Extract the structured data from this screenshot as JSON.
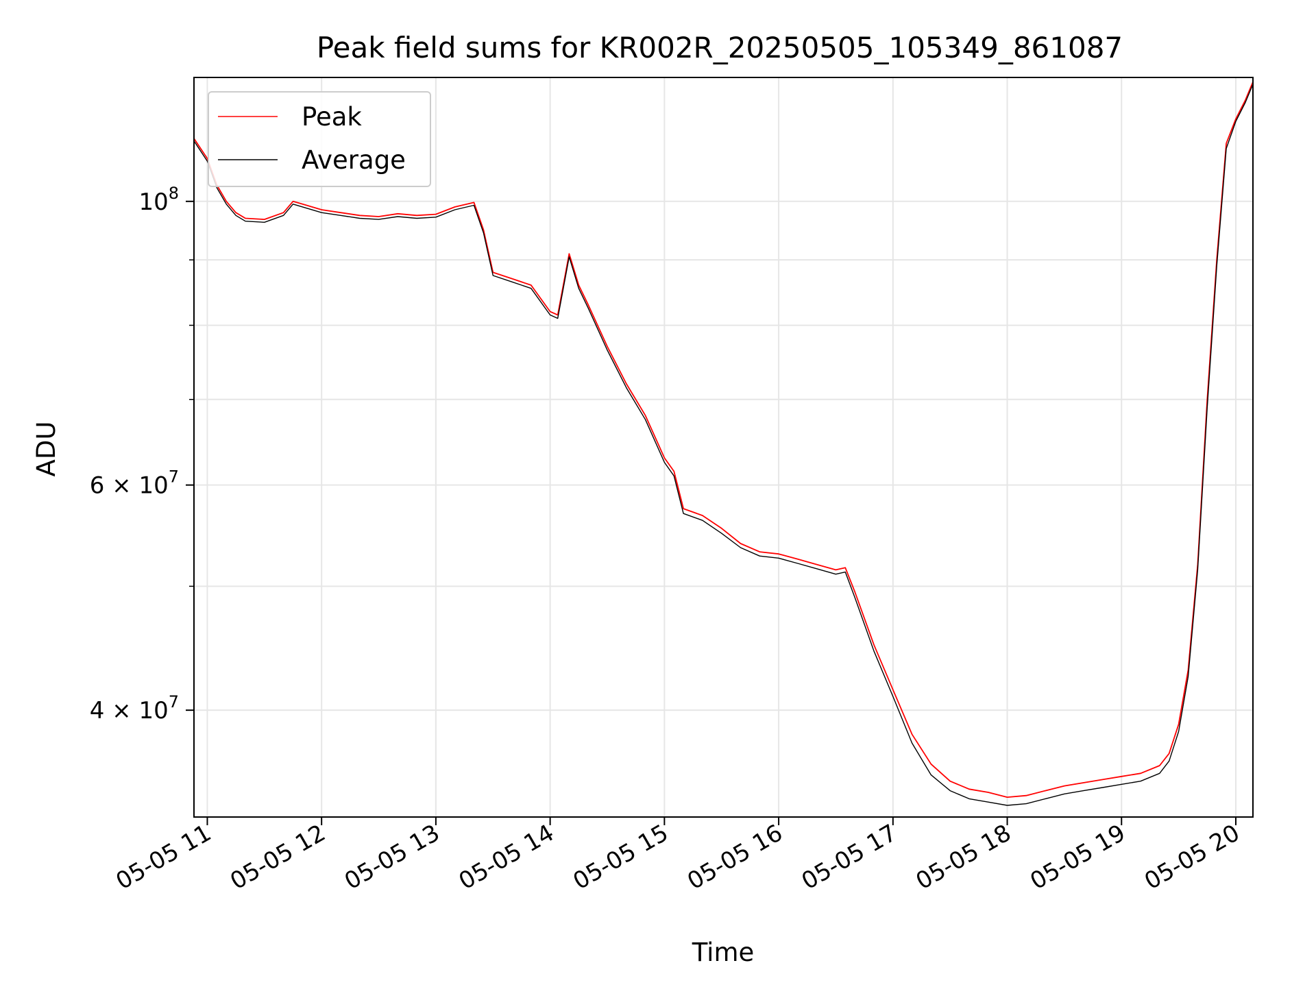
{
  "chart_data": {
    "type": "line",
    "title": "Peak field sums for KR002R_20250505_105349_861087",
    "xlabel": "Time",
    "ylabel": "ADU",
    "x_scale": "time",
    "y_scale": "log",
    "xlim": [
      "2025-05-05 10:53",
      "2025-05-05 20:09"
    ],
    "ylim": [
      33000000,
      125000000
    ],
    "grid": true,
    "legend_position": "top-left",
    "x_ticks": [
      {
        "value": "2025-05-05 11:00",
        "label": "05-05 11"
      },
      {
        "value": "2025-05-05 12:00",
        "label": "05-05 12"
      },
      {
        "value": "2025-05-05 13:00",
        "label": "05-05 13"
      },
      {
        "value": "2025-05-05 14:00",
        "label": "05-05 14"
      },
      {
        "value": "2025-05-05 15:00",
        "label": "05-05 15"
      },
      {
        "value": "2025-05-05 16:00",
        "label": "05-05 16"
      },
      {
        "value": "2025-05-05 17:00",
        "label": "05-05 17"
      },
      {
        "value": "2025-05-05 18:00",
        "label": "05-05 18"
      },
      {
        "value": "2025-05-05 19:00",
        "label": "05-05 19"
      },
      {
        "value": "2025-05-05 20:00",
        "label": "05-05 20"
      }
    ],
    "y_ticks": [
      {
        "value": 40000000,
        "mantissa": "4",
        "base": "10",
        "exp": "7"
      },
      {
        "value": 60000000,
        "mantissa": "6",
        "base": "10",
        "exp": "7"
      },
      {
        "value": 100000000,
        "mantissa": "",
        "base": "10",
        "exp": "8"
      }
    ],
    "y_minor_ticks": [
      50000000,
      70000000,
      80000000,
      90000000
    ],
    "x": [
      "2025-05-05 10:53",
      "2025-05-05 11:00",
      "2025-05-05 11:05",
      "2025-05-05 11:10",
      "2025-05-05 11:15",
      "2025-05-05 11:20",
      "2025-05-05 11:30",
      "2025-05-05 11:40",
      "2025-05-05 11:45",
      "2025-05-05 11:50",
      "2025-05-05 12:00",
      "2025-05-05 12:10",
      "2025-05-05 12:20",
      "2025-05-05 12:30",
      "2025-05-05 12:40",
      "2025-05-05 12:50",
      "2025-05-05 13:00",
      "2025-05-05 13:10",
      "2025-05-05 13:20",
      "2025-05-05 13:25",
      "2025-05-05 13:30",
      "2025-05-05 13:40",
      "2025-05-05 13:50",
      "2025-05-05 14:00",
      "2025-05-05 14:04",
      "2025-05-05 14:10",
      "2025-05-05 14:15",
      "2025-05-05 14:20",
      "2025-05-05 14:30",
      "2025-05-05 14:40",
      "2025-05-05 14:50",
      "2025-05-05 15:00",
      "2025-05-05 15:05",
      "2025-05-05 15:10",
      "2025-05-05 15:20",
      "2025-05-05 15:30",
      "2025-05-05 15:40",
      "2025-05-05 15:50",
      "2025-05-05 16:00",
      "2025-05-05 16:10",
      "2025-05-05 16:20",
      "2025-05-05 16:30",
      "2025-05-05 16:35",
      "2025-05-05 16:40",
      "2025-05-05 16:50",
      "2025-05-05 17:00",
      "2025-05-05 17:10",
      "2025-05-05 17:20",
      "2025-05-05 17:30",
      "2025-05-05 17:40",
      "2025-05-05 17:50",
      "2025-05-05 18:00",
      "2025-05-05 18:10",
      "2025-05-05 18:20",
      "2025-05-05 18:30",
      "2025-05-05 18:40",
      "2025-05-05 18:50",
      "2025-05-05 19:00",
      "2025-05-05 19:10",
      "2025-05-05 19:20",
      "2025-05-05 19:25",
      "2025-05-05 19:30",
      "2025-05-05 19:35",
      "2025-05-05 19:40",
      "2025-05-05 19:45",
      "2025-05-05 19:50",
      "2025-05-05 19:55",
      "2025-05-05 20:00",
      "2025-05-05 20:05",
      "2025-05-05 20:09"
    ],
    "series": [
      {
        "name": "Peak",
        "color": "#ff0000",
        "values": [
          112000000,
          108000000,
          103000000,
          100000000,
          98000000,
          97000000,
          96800000,
          98000000,
          100000000,
          99500000,
          98500000,
          98000000,
          97500000,
          97300000,
          97800000,
          97500000,
          97700000,
          99000000,
          99800000,
          95000000,
          88000000,
          87000000,
          86000000,
          82000000,
          81500000,
          91000000,
          86000000,
          83000000,
          77000000,
          72000000,
          68000000,
          63000000,
          61500000,
          57500000,
          56800000,
          55500000,
          54000000,
          53200000,
          53000000,
          52500000,
          52000000,
          51500000,
          51700000,
          49500000,
          45000000,
          41500000,
          38300000,
          36300000,
          35200000,
          34700000,
          34500000,
          34200000,
          34300000,
          34600000,
          34900000,
          35100000,
          35300000,
          35500000,
          35700000,
          36200000,
          37000000,
          39000000,
          43000000,
          52000000,
          70000000,
          90000000,
          111000000,
          116000000,
          120000000,
          124000000
        ]
      },
      {
        "name": "Average",
        "color": "#000000",
        "values": [
          111500000,
          107500000,
          102500000,
          99500000,
          97500000,
          96500000,
          96300000,
          97500000,
          99500000,
          99000000,
          98000000,
          97500000,
          97000000,
          96800000,
          97300000,
          97000000,
          97200000,
          98500000,
          99300000,
          94500000,
          87500000,
          86500000,
          85500000,
          81500000,
          81000000,
          90500000,
          85500000,
          82500000,
          76500000,
          71500000,
          67500000,
          62500000,
          61000000,
          57000000,
          56300000,
          55000000,
          53600000,
          52800000,
          52600000,
          52100000,
          51600000,
          51100000,
          51300000,
          49000000,
          44500000,
          41000000,
          37700000,
          35600000,
          34600000,
          34100000,
          33900000,
          33700000,
          33800000,
          34100000,
          34400000,
          34600000,
          34800000,
          35000000,
          35200000,
          35700000,
          36500000,
          38500000,
          42500000,
          51500000,
          69000000,
          89000000,
          110000000,
          115500000,
          119500000,
          123500000
        ]
      }
    ],
    "annotations": []
  }
}
